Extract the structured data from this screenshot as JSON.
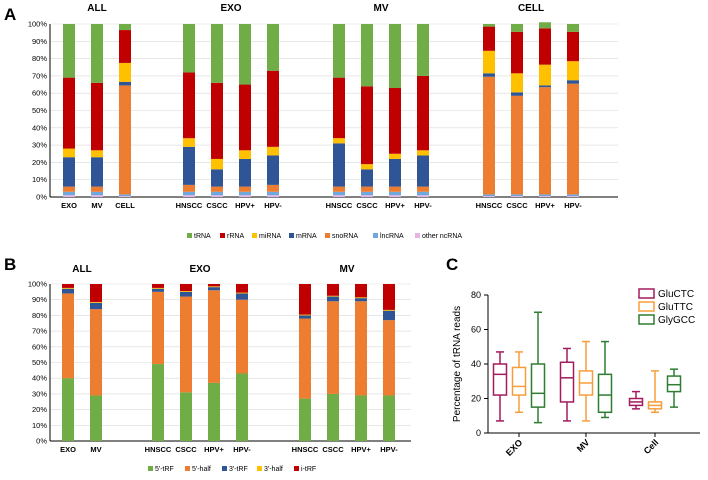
{
  "figure": {
    "panel_labels": [
      "A",
      "B",
      "C"
    ]
  },
  "chart_data": [
    {
      "id": "A",
      "type": "bar",
      "stacked": true,
      "percent_axis": true,
      "yticks": [
        "0%",
        "10%",
        "20%",
        "30%",
        "40%",
        "50%",
        "60%",
        "70%",
        "80%",
        "90%",
        "100%"
      ],
      "groups": [
        {
          "title": "ALL",
          "categories": [
            "EXO",
            "MV",
            "CELL"
          ]
        },
        {
          "title": "EXO",
          "categories": [
            "HNSCC",
            "CSCC",
            "HPV+",
            "HPV-"
          ]
        },
        {
          "title": "MV",
          "categories": [
            "HNSCC",
            "CSCC",
            "HPV+",
            "HPV-"
          ]
        },
        {
          "title": "CELL",
          "categories": [
            "HNSCC",
            "CSCC",
            "HPV+",
            "HPV-"
          ]
        }
      ],
      "series": [
        {
          "name": "other ncRNA",
          "color": "#e6b3e6",
          "values": [
            1,
            1,
            0.5,
            1,
            1,
            1,
            1,
            1,
            1,
            1,
            1,
            0.5,
            0.5,
            0.5,
            0.5
          ]
        },
        {
          "name": "lncRNA",
          "color": "#6fa8dc",
          "values": [
            2,
            2,
            1,
            2,
            2,
            2,
            2,
            2,
            2,
            2,
            2,
            1,
            1,
            1,
            1
          ]
        },
        {
          "name": "snoRNA",
          "color": "#ed7d31",
          "values": [
            3,
            3,
            63,
            4,
            3,
            3,
            4,
            3,
            3,
            3,
            3,
            68,
            57,
            62,
            64
          ]
        },
        {
          "name": "mRNA",
          "color": "#2f5597",
          "values": [
            17,
            17,
            2,
            22,
            10,
            16,
            17,
            25,
            10,
            16,
            18,
            2,
            2,
            1,
            2
          ]
        },
        {
          "name": "miRNA",
          "color": "#ffc000",
          "values": [
            5,
            4,
            11,
            5,
            6,
            5,
            5,
            3,
            3,
            3,
            3,
            13,
            11,
            12,
            11
          ]
        },
        {
          "name": "rRNA",
          "color": "#c00000",
          "values": [
            41,
            39,
            19,
            38,
            44,
            38,
            44,
            35,
            45,
            38,
            43,
            14,
            24,
            21,
            17
          ]
        },
        {
          "name": "tRNA",
          "color": "#70ad47",
          "values": [
            31,
            34,
            3.5,
            28,
            34,
            35,
            27,
            31,
            36,
            37,
            30,
            1.5,
            4.5,
            3.5,
            4.5
          ]
        }
      ],
      "legend": [
        "tRNA",
        "rRNA",
        "miRNA",
        "mRNA",
        "snoRNA",
        "lncRNA",
        "other ncRNA"
      ]
    },
    {
      "id": "B",
      "type": "bar",
      "stacked": true,
      "percent_axis": true,
      "yticks": [
        "0%",
        "10%",
        "20%",
        "30%",
        "40%",
        "50%",
        "60%",
        "70%",
        "80%",
        "90%",
        "100%"
      ],
      "groups": [
        {
          "title": "ALL",
          "categories": [
            "EXO",
            "MV"
          ]
        },
        {
          "title": "EXO",
          "categories": [
            "HNSCC",
            "CSCC",
            "HPV+",
            "HPV-"
          ]
        },
        {
          "title": "MV",
          "categories": [
            "HNSCC",
            "CSCC",
            "HPV+",
            "HPV-"
          ]
        }
      ],
      "series": [
        {
          "name": "5'-tRF",
          "color": "#70ad47",
          "values": [
            40,
            29,
            49,
            31,
            37,
            43,
            27,
            30,
            29,
            29
          ]
        },
        {
          "name": "5'-half",
          "color": "#ed7d31",
          "values": [
            54,
            55,
            46,
            61,
            59,
            47,
            51,
            59,
            60,
            48
          ]
        },
        {
          "name": "3'-tRF",
          "color": "#2f5597",
          "values": [
            3,
            4,
            2,
            3,
            2,
            4,
            2,
            3,
            2,
            6
          ]
        },
        {
          "name": "3'-half",
          "color": "#ffc000",
          "values": [
            0.5,
            0.5,
            0.5,
            0.5,
            0.5,
            0.5,
            0.5,
            0.5,
            0.5,
            0.5
          ]
        },
        {
          "name": "i-tRF",
          "color": "#c00000",
          "values": [
            2.5,
            11.5,
            2.5,
            4.5,
            1.5,
            5.5,
            19.5,
            7.5,
            8.5,
            16.5
          ]
        }
      ],
      "legend": [
        "5'-tRF",
        "5'-half",
        "3'-tRF",
        "3'-half",
        "i-tRF"
      ]
    },
    {
      "id": "C",
      "type": "box",
      "ylabel": "Percentage of tRNA reads",
      "ylim": [
        0,
        80
      ],
      "yticks": [
        "0",
        "20",
        "40",
        "60",
        "80"
      ],
      "categories": [
        "EXO",
        "MV",
        "Cell"
      ],
      "series": [
        {
          "name": "GluCTC",
          "color": "#a31a5f",
          "boxes": [
            {
              "min": 7,
              "q1": 22,
              "median": 34,
              "q3": 40,
              "max": 47
            },
            {
              "min": 7,
              "q1": 18,
              "median": 32,
              "q3": 41,
              "max": 49
            },
            {
              "min": 14,
              "q1": 16,
              "median": 18,
              "q3": 20,
              "max": 24
            }
          ]
        },
        {
          "name": "GluTTC",
          "color": "#f79e3c",
          "boxes": [
            {
              "min": 12,
              "q1": 22,
              "median": 27,
              "q3": 38,
              "max": 47
            },
            {
              "min": 7,
              "q1": 22,
              "median": 29,
              "q3": 36,
              "max": 53
            },
            {
              "min": 12,
              "q1": 14,
              "median": 16,
              "q3": 18,
              "max": 36
            }
          ]
        },
        {
          "name": "GlyGCC",
          "color": "#2e7d32",
          "boxes": [
            {
              "min": 6,
              "q1": 15,
              "median": 23,
              "q3": 40,
              "max": 70
            },
            {
              "min": 9,
              "q1": 12,
              "median": 22,
              "q3": 34,
              "max": 53
            },
            {
              "min": 15,
              "q1": 24,
              "median": 28,
              "q3": 33,
              "max": 37
            }
          ]
        }
      ]
    }
  ]
}
